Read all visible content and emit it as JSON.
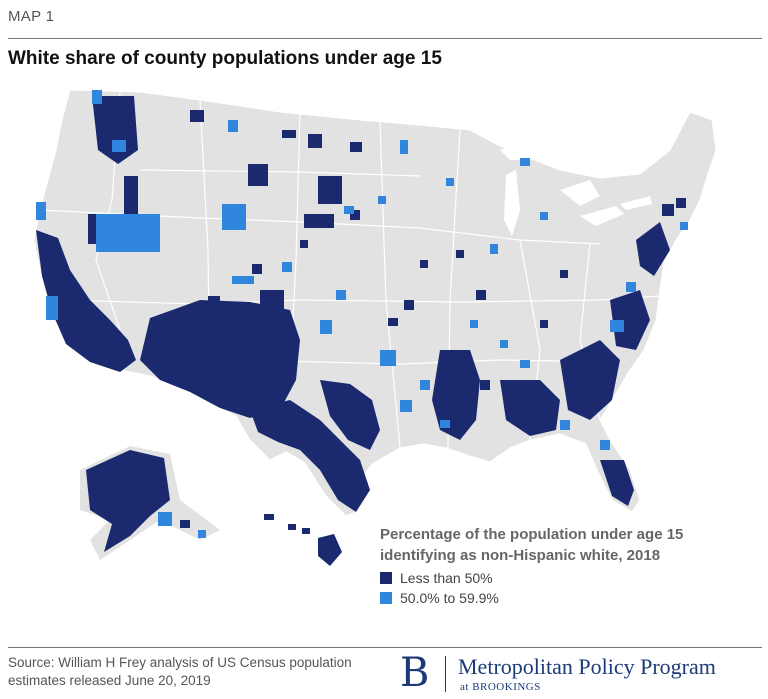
{
  "header": {
    "kicker": "MAP 1",
    "title": "White share of county populations under age 15"
  },
  "legend": {
    "title_line1": "Percentage of the population under age 15",
    "title_line2": "identifying as non-Hispanic white, 2018",
    "items": [
      {
        "label": "Less than 50%",
        "color": "#1b2a6e"
      },
      {
        "label": "50.0% to 59.9%",
        "color": "#2f86dc"
      }
    ]
  },
  "colors": {
    "base": "#e2e2e2",
    "border": "#ffffff",
    "dark": "#1b2a6e",
    "mid": "#2f86dc"
  },
  "footer": {
    "source_line1": "Source: William H Frey analysis of US Census population",
    "source_line2": "estimates released June 20, 2019",
    "brand_letter": "B",
    "brand_name": "Metropolitan Policy Program",
    "brand_sub": "at BROOKINGS"
  }
}
